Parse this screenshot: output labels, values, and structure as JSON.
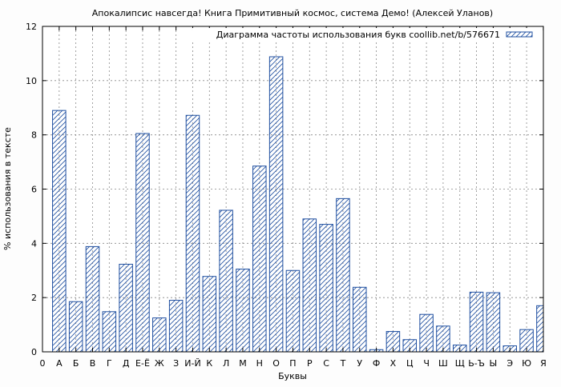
{
  "chart_data": {
    "type": "bar",
    "title": "Апокалипсис навсегда! Книга Примитивный космос, система Демо! (Алексей Уланов)",
    "xlabel": "Буквы",
    "ylabel": "% использования в тексте",
    "legend": "Диаграмма частоты использования букв coollib.net/b/576671",
    "legend_position": "top-right",
    "grid": true,
    "ylim": [
      0,
      12
    ],
    "yticks": [
      "0",
      "2",
      "4",
      "6",
      "8",
      "10",
      "12"
    ],
    "origin_label": "0",
    "bar_color": "#1f4fa0",
    "categories": [
      "А",
      "Б",
      "В",
      "Г",
      "Д",
      "Е-Ё",
      "Ж",
      "З",
      "И-Й",
      "К",
      "Л",
      "М",
      "Н",
      "О",
      "П",
      "Р",
      "С",
      "Т",
      "У",
      "Ф",
      "Х",
      "Ц",
      "Ч",
      "Ш",
      "Щ",
      "Ь-Ъ",
      "Ы",
      "Э",
      "Ю",
      "Я"
    ],
    "values": [
      8.9,
      1.85,
      3.88,
      1.48,
      3.23,
      8.05,
      1.25,
      1.9,
      8.72,
      2.78,
      5.22,
      3.05,
      6.85,
      10.88,
      3.0,
      4.9,
      4.7,
      5.65,
      2.38,
      0.08,
      0.75,
      0.45,
      1.38,
      0.95,
      0.25,
      2.2,
      2.18,
      0.22,
      0.82,
      1.7
    ]
  }
}
